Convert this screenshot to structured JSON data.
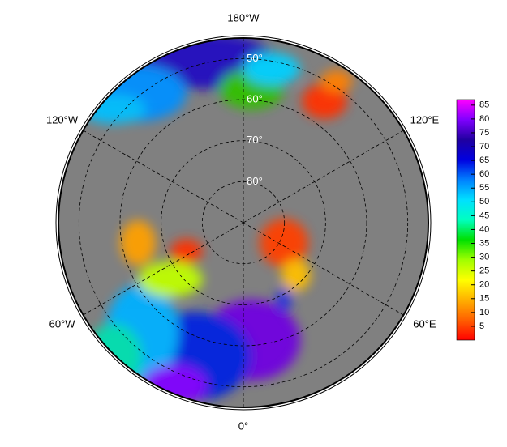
{
  "map": {
    "center_lat": 90,
    "boundary_lat": 45,
    "meridians": [
      {
        "value": -180,
        "label": "180°W"
      },
      {
        "value": -120,
        "label": "120°W"
      },
      {
        "value": -60,
        "label": "60°W"
      },
      {
        "value": 0,
        "label": "0°"
      },
      {
        "value": 60,
        "label": "60°E"
      },
      {
        "value": 120,
        "label": "120°E"
      }
    ],
    "parallels": [
      {
        "value": 50,
        "label": "50°"
      },
      {
        "value": 60,
        "label": "60°"
      },
      {
        "value": 70,
        "label": "70°"
      },
      {
        "value": 80,
        "label": "80°"
      }
    ]
  },
  "colorbar": {
    "lim": [
      0,
      87
    ],
    "ticks": [
      5,
      10,
      15,
      20,
      25,
      30,
      35,
      40,
      45,
      50,
      55,
      60,
      65,
      70,
      75,
      80,
      85
    ],
    "colors": [
      "#ff0000",
      "#ff6000",
      "#ffb000",
      "#ffff00",
      "#a0ff00",
      "#00e000",
      "#00ffc0",
      "#00e0ff",
      "#0080ff",
      "#0000e0",
      "#2000a0",
      "#8000ff",
      "#ff00ff"
    ]
  }
}
